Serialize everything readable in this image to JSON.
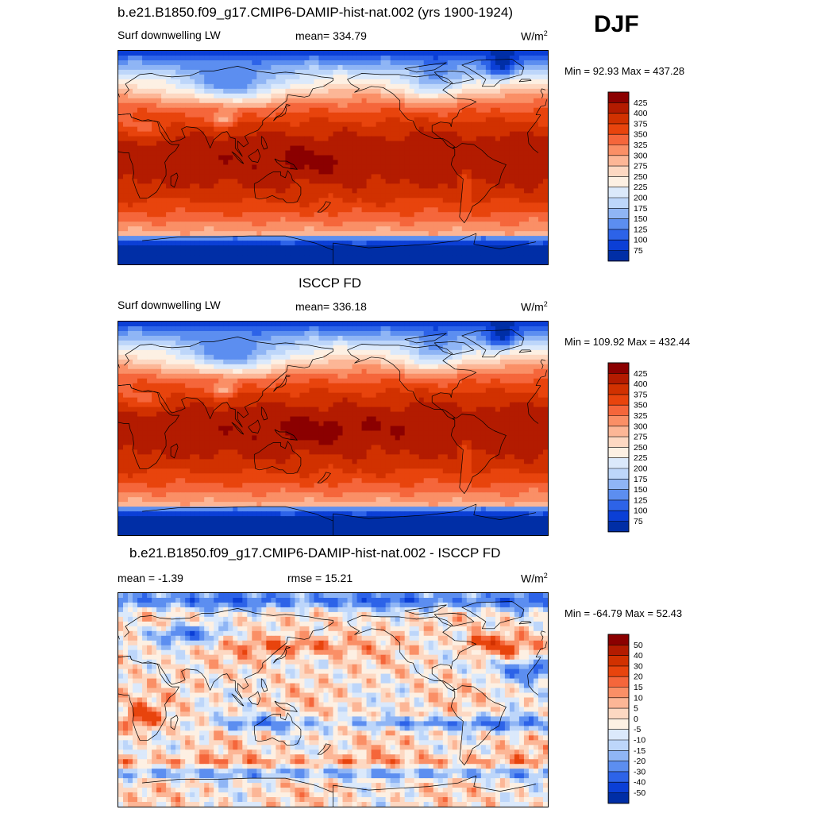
{
  "season": "DJF",
  "panels": [
    {
      "title": "b.e21.B1850.f09_g17.CMIP6-DAMIP-hist-nat.002 (yrs 1900-1924)",
      "left_label": "Surf downwelling LW",
      "center_label": "mean= 334.79",
      "unit_base": "W/m",
      "unit_sup": "2",
      "minmax": "Min =  92.93 Max = 437.28"
    },
    {
      "title": "ISCCP FD",
      "left_label": "Surf downwelling LW",
      "center_label": "mean= 336.18",
      "unit_base": "W/m",
      "unit_sup": "2",
      "minmax": "Min = 109.92 Max = 432.44"
    },
    {
      "title": "b.e21.B1850.f09_g17.CMIP6-DAMIP-hist-nat.002 - ISCCP FD",
      "left_label": "mean =  -1.39",
      "center_label": "rmse =  15.21",
      "unit_base": "W/m",
      "unit_sup": "2",
      "minmax": "Min = -64.79 Max =  52.43"
    }
  ],
  "chart_data": [
    {
      "type": "heatmap",
      "title": "b.e21.B1850.f09_g17.CMIP6-DAMIP-hist-nat.002 (yrs 1900-1924)",
      "variable": "Surf downwelling LW",
      "units": "W/m2",
      "mean": 334.79,
      "min": 92.93,
      "max": 437.28,
      "colorbar_levels": [
        425,
        400,
        375,
        350,
        325,
        300,
        275,
        250,
        225,
        200,
        175,
        150,
        125,
        100,
        75
      ],
      "colorbar_colors": [
        "#8b0000",
        "#b31b00",
        "#d13100",
        "#e8440d",
        "#f5663b",
        "#fa8f66",
        "#fcb696",
        "#fdd8c2",
        "#fdf0e3",
        "#dbe9fb",
        "#bdd6fa",
        "#8fb5f5",
        "#5c8ef0",
        "#2d63e8",
        "#0b3fd6",
        "#002ea6"
      ]
    },
    {
      "type": "heatmap",
      "title": "ISCCP FD",
      "variable": "Surf downwelling LW",
      "units": "W/m2",
      "mean": 336.18,
      "min": 109.92,
      "max": 432.44,
      "colorbar_levels": [
        425,
        400,
        375,
        350,
        325,
        300,
        275,
        250,
        225,
        200,
        175,
        150,
        125,
        100,
        75
      ],
      "colorbar_colors": [
        "#8b0000",
        "#b31b00",
        "#d13100",
        "#e8440d",
        "#f5663b",
        "#fa8f66",
        "#fcb696",
        "#fdd8c2",
        "#fdf0e3",
        "#dbe9fb",
        "#bdd6fa",
        "#8fb5f5",
        "#5c8ef0",
        "#2d63e8",
        "#0b3fd6",
        "#002ea6"
      ]
    },
    {
      "type": "heatmap",
      "title": "b.e21.B1850.f09_g17.CMIP6-DAMIP-hist-nat.002 - ISCCP FD",
      "units": "W/m2",
      "mean": -1.39,
      "rmse": 15.21,
      "min": -64.79,
      "max": 52.43,
      "colorbar_levels": [
        50,
        40,
        30,
        20,
        15,
        10,
        5,
        0,
        -5,
        -10,
        -15,
        -20,
        -30,
        -40,
        -50
      ],
      "colorbar_colors": [
        "#8b0000",
        "#b31b00",
        "#d13100",
        "#e8440d",
        "#f5663b",
        "#fa8f66",
        "#fcb696",
        "#fdd8c2",
        "#fdf0e3",
        "#dbe9fb",
        "#bdd6fa",
        "#8fb5f5",
        "#5c8ef0",
        "#2d63e8",
        "#0b3fd6",
        "#002ea6"
      ]
    }
  ]
}
